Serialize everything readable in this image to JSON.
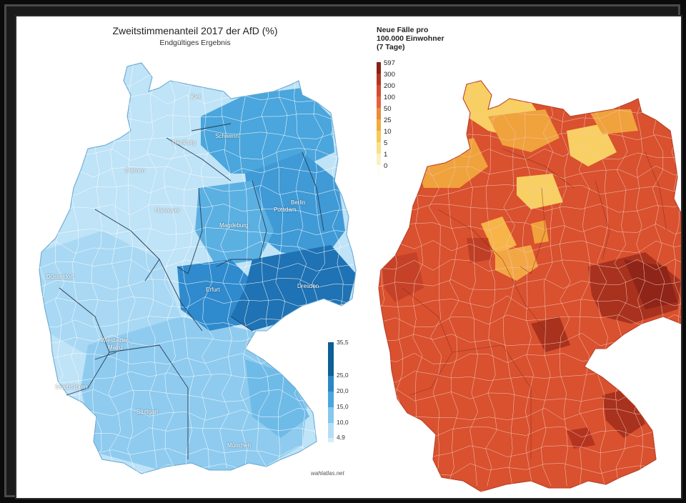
{
  "left_map": {
    "title": "Zweitstimmenanteil 2017 der AfD (%)",
    "subtitle": "Endgültiges Ergebnis",
    "source": "wahlatlas.net",
    "cities": [
      {
        "name": "Kiel"
      },
      {
        "name": "Hamburg"
      },
      {
        "name": "Schwerin"
      },
      {
        "name": "Bremen"
      },
      {
        "name": "Berlin"
      },
      {
        "name": "Potsdam"
      },
      {
        "name": "Hannover"
      },
      {
        "name": "Magdeburg"
      },
      {
        "name": "Düsseldorf"
      },
      {
        "name": "Erfurt"
      },
      {
        "name": "Dresden"
      },
      {
        "name": "Wiesbaden"
      },
      {
        "name": "Mainz"
      },
      {
        "name": "Saarbrücken"
      },
      {
        "name": "Stuttgart"
      },
      {
        "name": "München"
      }
    ],
    "legend": {
      "ticks": [
        "35,5",
        "25,0",
        "20,0",
        "15,0",
        "10,0",
        "4,9"
      ],
      "colors": [
        "#0d5f95",
        "#2a86c6",
        "#4aa6dc",
        "#86c7ee",
        "#b4def5",
        "#d6eefb"
      ]
    },
    "palette": {
      "light": "#bfe3f7",
      "mid": "#8ecbef",
      "dark": "#3f9ad6",
      "darkest": "#1f72b3"
    }
  },
  "right_map": {
    "legend_title": "Neue Fälle pro\n100.000 Einwohner\n(7 Tage)",
    "legend": {
      "ticks": [
        "597",
        "300",
        "200",
        "100",
        "50",
        "25",
        "10",
        "5",
        "1",
        "0"
      ],
      "colors": [
        "#8b2017",
        "#b53420",
        "#d44a2c",
        "#e4613a",
        "#ec8a3a",
        "#f1ac3a",
        "#f6ca55",
        "#f9e08a",
        "#fbf0c4",
        "#fffef6"
      ]
    },
    "palette": {
      "base": "#d9512f",
      "dark": "#a8321e",
      "darker": "#8f2419",
      "orange": "#f0a23c",
      "yellow": "#f8cf62"
    }
  }
}
